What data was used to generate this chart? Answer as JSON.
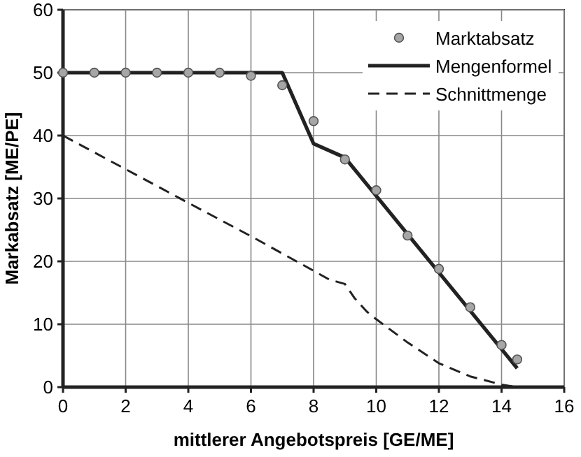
{
  "chart_data": {
    "type": "line",
    "xlabel": "mittlerer Angebotspreis [GE/ME]",
    "ylabel": "Markabsatz [ME/PE]",
    "xlim": [
      0,
      16
    ],
    "ylim": [
      0,
      60
    ],
    "xticks": [
      0,
      2,
      4,
      6,
      8,
      10,
      12,
      14,
      16
    ],
    "yticks": [
      0,
      10,
      20,
      30,
      40,
      50,
      60
    ],
    "grid": true,
    "legend": "top right",
    "series": [
      {
        "name": "Marktabsatz",
        "type": "scatter",
        "marker": "circle",
        "color": "#a6a6a6",
        "x": [
          0,
          1,
          2,
          3,
          4,
          5,
          6,
          7,
          8,
          9,
          10,
          11,
          12,
          13,
          14,
          14.5
        ],
        "values": [
          50,
          50,
          50,
          50,
          50,
          50,
          49.5,
          48,
          42.3,
          36.2,
          31.3,
          24.1,
          18.8,
          12.7,
          6.7,
          4.4
        ]
      },
      {
        "name": "Mengenformel",
        "line_style": "solid",
        "color": "#222222",
        "x": [
          0,
          7,
          8,
          9,
          14.5
        ],
        "values": [
          50,
          50,
          38.7,
          36.5,
          3
        ]
      },
      {
        "name": "Schnittmenge",
        "line_style": "dashed",
        "color": "#222222",
        "x": [
          0,
          4,
          6,
          8,
          8.5,
          9,
          9.3,
          9.7,
          10,
          11,
          12,
          13,
          14,
          14.5
        ],
        "values": [
          40,
          29.3,
          24,
          18.5,
          17.1,
          16.4,
          14.2,
          12,
          10.8,
          7.1,
          3.8,
          1.7,
          0.4,
          0
        ]
      }
    ]
  }
}
